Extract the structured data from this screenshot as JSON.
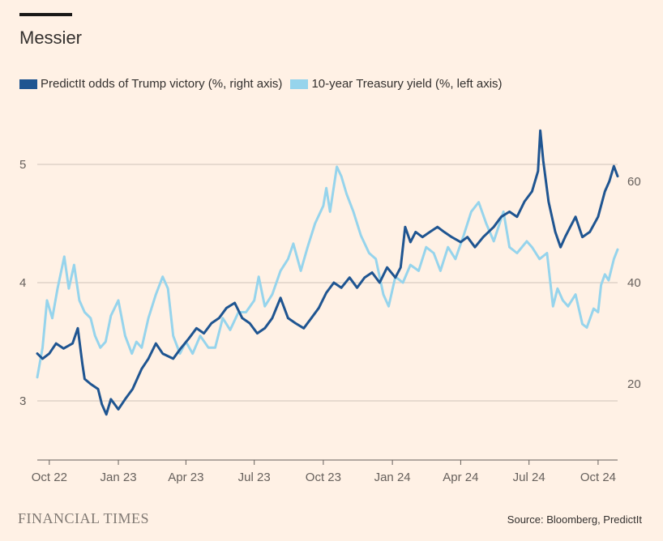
{
  "header": {
    "title": "Messier"
  },
  "footer": {
    "brand": "FINANCIAL TIMES",
    "source": "Source: Bloomberg, PredictIt"
  },
  "colors": {
    "background": "#fff1e5",
    "trump": "#1f5591",
    "yield": "#96d4ec",
    "grid": "#cfc3b9"
  },
  "chart_data": {
    "type": "line",
    "x_ticks": [
      "Oct 22",
      "Jan 23",
      "Apr 23",
      "Jul 23",
      "Oct 23",
      "Jan 24",
      "Apr 24",
      "Jul 24",
      "Oct 24"
    ],
    "x_range": [
      "2022-09-15",
      "2024-10-27"
    ],
    "left_axis": {
      "ticks": [
        "3",
        "4",
        "5"
      ],
      "range": [
        2.5,
        5.5
      ]
    },
    "right_axis": {
      "ticks": [
        "20",
        "40",
        "60"
      ],
      "range": [
        5,
        75
      ]
    },
    "series": [
      {
        "name": "PredictIt odds of Trump victory (%, right axis)",
        "axis": "right",
        "points": [
          [
            "2022-09-15",
            26
          ],
          [
            "2022-09-22",
            25
          ],
          [
            "2022-10-01",
            26
          ],
          [
            "2022-10-10",
            28
          ],
          [
            "2022-10-20",
            27
          ],
          [
            "2022-11-01",
            28
          ],
          [
            "2022-11-08",
            31
          ],
          [
            "2022-11-14",
            24
          ],
          [
            "2022-11-17",
            21
          ],
          [
            "2022-11-25",
            20
          ],
          [
            "2022-12-05",
            19
          ],
          [
            "2022-12-10",
            16
          ],
          [
            "2022-12-16",
            14
          ],
          [
            "2022-12-22",
            17
          ],
          [
            "2023-01-01",
            15
          ],
          [
            "2023-01-10",
            17
          ],
          [
            "2023-01-20",
            19
          ],
          [
            "2023-02-01",
            23
          ],
          [
            "2023-02-10",
            25
          ],
          [
            "2023-02-20",
            28
          ],
          [
            "2023-03-01",
            26
          ],
          [
            "2023-03-15",
            25
          ],
          [
            "2023-03-25",
            27
          ],
          [
            "2023-04-05",
            29
          ],
          [
            "2023-04-15",
            31
          ],
          [
            "2023-04-25",
            30
          ],
          [
            "2023-05-05",
            32
          ],
          [
            "2023-05-15",
            33
          ],
          [
            "2023-05-25",
            35
          ],
          [
            "2023-06-05",
            36
          ],
          [
            "2023-06-15",
            33
          ],
          [
            "2023-06-25",
            32
          ],
          [
            "2023-07-05",
            30
          ],
          [
            "2023-07-15",
            31
          ],
          [
            "2023-07-25",
            33
          ],
          [
            "2023-08-05",
            37
          ],
          [
            "2023-08-15",
            33
          ],
          [
            "2023-08-25",
            32
          ],
          [
            "2023-09-05",
            31
          ],
          [
            "2023-09-15",
            33
          ],
          [
            "2023-09-25",
            35
          ],
          [
            "2023-10-05",
            38
          ],
          [
            "2023-10-15",
            40
          ],
          [
            "2023-10-25",
            39
          ],
          [
            "2023-11-05",
            41
          ],
          [
            "2023-11-15",
            39
          ],
          [
            "2023-11-25",
            41
          ],
          [
            "2023-12-05",
            42
          ],
          [
            "2023-12-15",
            40
          ],
          [
            "2023-12-25",
            43
          ],
          [
            "2024-01-05",
            41
          ],
          [
            "2024-01-12",
            43
          ],
          [
            "2024-01-18",
            51
          ],
          [
            "2024-01-25",
            48
          ],
          [
            "2024-02-01",
            50
          ],
          [
            "2024-02-10",
            49
          ],
          [
            "2024-02-20",
            50
          ],
          [
            "2024-03-01",
            51
          ],
          [
            "2024-03-10",
            50
          ],
          [
            "2024-03-20",
            49
          ],
          [
            "2024-04-01",
            48
          ],
          [
            "2024-04-10",
            49
          ],
          [
            "2024-04-20",
            47
          ],
          [
            "2024-05-01",
            49
          ],
          [
            "2024-05-15",
            51
          ],
          [
            "2024-05-25",
            53
          ],
          [
            "2024-06-05",
            54
          ],
          [
            "2024-06-15",
            53
          ],
          [
            "2024-06-25",
            56
          ],
          [
            "2024-07-05",
            58
          ],
          [
            "2024-07-13",
            62
          ],
          [
            "2024-07-16",
            70
          ],
          [
            "2024-07-20",
            64
          ],
          [
            "2024-07-27",
            56
          ],
          [
            "2024-08-05",
            50
          ],
          [
            "2024-08-12",
            47
          ],
          [
            "2024-08-18",
            49
          ],
          [
            "2024-08-25",
            51
          ],
          [
            "2024-09-01",
            53
          ],
          [
            "2024-09-10",
            49
          ],
          [
            "2024-09-20",
            50
          ],
          [
            "2024-10-01",
            53
          ],
          [
            "2024-10-10",
            58
          ],
          [
            "2024-10-16",
            60
          ],
          [
            "2024-10-22",
            63
          ],
          [
            "2024-10-27",
            61
          ]
        ]
      },
      {
        "name": "10-year Treasury yield (%, left axis)",
        "axis": "left",
        "points": [
          [
            "2022-09-15",
            3.2
          ],
          [
            "2022-09-22",
            3.45
          ],
          [
            "2022-09-28",
            3.85
          ],
          [
            "2022-10-05",
            3.7
          ],
          [
            "2022-10-12",
            3.95
          ],
          [
            "2022-10-21",
            4.22
          ],
          [
            "2022-10-27",
            3.95
          ],
          [
            "2022-11-03",
            4.15
          ],
          [
            "2022-11-10",
            3.85
          ],
          [
            "2022-11-17",
            3.75
          ],
          [
            "2022-11-25",
            3.7
          ],
          [
            "2022-12-01",
            3.55
          ],
          [
            "2022-12-08",
            3.45
          ],
          [
            "2022-12-15",
            3.5
          ],
          [
            "2022-12-22",
            3.72
          ],
          [
            "2023-01-01",
            3.85
          ],
          [
            "2023-01-10",
            3.55
          ],
          [
            "2023-01-19",
            3.4
          ],
          [
            "2023-01-25",
            3.5
          ],
          [
            "2023-02-01",
            3.45
          ],
          [
            "2023-02-10",
            3.7
          ],
          [
            "2023-02-20",
            3.9
          ],
          [
            "2023-03-01",
            4.05
          ],
          [
            "2023-03-08",
            3.95
          ],
          [
            "2023-03-15",
            3.55
          ],
          [
            "2023-03-24",
            3.4
          ],
          [
            "2023-04-01",
            3.5
          ],
          [
            "2023-04-10",
            3.4
          ],
          [
            "2023-04-20",
            3.55
          ],
          [
            "2023-05-01",
            3.45
          ],
          [
            "2023-05-10",
            3.45
          ],
          [
            "2023-05-20",
            3.7
          ],
          [
            "2023-05-30",
            3.6
          ],
          [
            "2023-06-10",
            3.75
          ],
          [
            "2023-06-20",
            3.75
          ],
          [
            "2023-07-01",
            3.85
          ],
          [
            "2023-07-07",
            4.05
          ],
          [
            "2023-07-15",
            3.8
          ],
          [
            "2023-07-25",
            3.9
          ],
          [
            "2023-08-05",
            4.1
          ],
          [
            "2023-08-15",
            4.2
          ],
          [
            "2023-08-22",
            4.33
          ],
          [
            "2023-09-01",
            4.1
          ],
          [
            "2023-09-10",
            4.3
          ],
          [
            "2023-09-20",
            4.5
          ],
          [
            "2023-10-01",
            4.65
          ],
          [
            "2023-10-05",
            4.8
          ],
          [
            "2023-10-10",
            4.6
          ],
          [
            "2023-10-19",
            4.98
          ],
          [
            "2023-10-25",
            4.9
          ],
          [
            "2023-11-01",
            4.75
          ],
          [
            "2023-11-10",
            4.6
          ],
          [
            "2023-11-20",
            4.4
          ],
          [
            "2023-12-01",
            4.25
          ],
          [
            "2023-12-10",
            4.2
          ],
          [
            "2023-12-20",
            3.9
          ],
          [
            "2023-12-27",
            3.8
          ],
          [
            "2024-01-05",
            4.05
          ],
          [
            "2024-01-15",
            4.0
          ],
          [
            "2024-01-25",
            4.15
          ],
          [
            "2024-02-05",
            4.1
          ],
          [
            "2024-02-15",
            4.3
          ],
          [
            "2024-02-25",
            4.25
          ],
          [
            "2024-03-05",
            4.1
          ],
          [
            "2024-03-15",
            4.3
          ],
          [
            "2024-03-25",
            4.2
          ],
          [
            "2024-04-05",
            4.4
          ],
          [
            "2024-04-15",
            4.6
          ],
          [
            "2024-04-25",
            4.68
          ],
          [
            "2024-05-05",
            4.5
          ],
          [
            "2024-05-15",
            4.35
          ],
          [
            "2024-05-28",
            4.6
          ],
          [
            "2024-06-05",
            4.3
          ],
          [
            "2024-06-15",
            4.25
          ],
          [
            "2024-06-28",
            4.35
          ],
          [
            "2024-07-05",
            4.3
          ],
          [
            "2024-07-15",
            4.2
          ],
          [
            "2024-07-25",
            4.25
          ],
          [
            "2024-08-02",
            3.8
          ],
          [
            "2024-08-08",
            3.95
          ],
          [
            "2024-08-15",
            3.85
          ],
          [
            "2024-08-22",
            3.8
          ],
          [
            "2024-09-01",
            3.9
          ],
          [
            "2024-09-10",
            3.65
          ],
          [
            "2024-09-16",
            3.62
          ],
          [
            "2024-09-25",
            3.78
          ],
          [
            "2024-10-01",
            3.75
          ],
          [
            "2024-10-05",
            3.98
          ],
          [
            "2024-10-10",
            4.07
          ],
          [
            "2024-10-15",
            4.02
          ],
          [
            "2024-10-22",
            4.2
          ],
          [
            "2024-10-27",
            4.28
          ]
        ]
      }
    ]
  }
}
